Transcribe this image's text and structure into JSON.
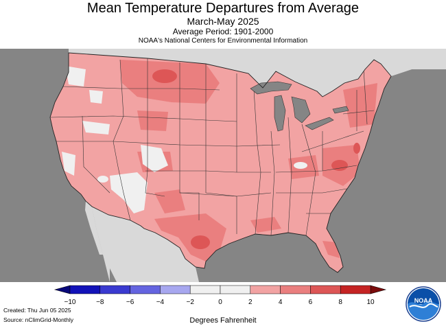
{
  "header": {
    "title": "Mean Temperature Departures from Average",
    "period": "March-May 2025",
    "average_period": "Average Period: 1901-2000",
    "agency": "NOAA's National Centers for Environmental Information"
  },
  "map": {
    "region": "Contiguous United States",
    "colors": {
      "land_outside": "#d9d9d9",
      "water": "#858585",
      "boundary": "#333333"
    }
  },
  "legend": {
    "label": "Degrees Fahrenheit",
    "ticks": [
      "−10",
      "−8",
      "−6",
      "−4",
      "−2",
      "0",
      "2",
      "4",
      "6",
      "8",
      "10"
    ],
    "bins": [
      {
        "range": "-10 to -8",
        "color": "#1212b8"
      },
      {
        "range": "-8 to -6",
        "color": "#3a3ad0"
      },
      {
        "range": "-6 to -4",
        "color": "#6464e0"
      },
      {
        "range": "-4 to -2",
        "color": "#a7a7ef"
      },
      {
        "range": "-2 to 0",
        "color": "#f0f0f0"
      },
      {
        "range": "0 to 2",
        "color": "#f0f0f0"
      },
      {
        "range": "2 to 4",
        "color": "#f2a3a3"
      },
      {
        "range": "4 to 6",
        "color": "#ea7f7f"
      },
      {
        "range": "6 to 8",
        "color": "#dd5656"
      },
      {
        "range": "8 to 10",
        "color": "#c52424"
      }
    ]
  },
  "footer": {
    "created": "Created: Thu Jun 05 2025",
    "source": "Source: nClimGrid-Monthly"
  },
  "logo": {
    "text": "NOAA",
    "icon": "noaa-logo-icon"
  }
}
